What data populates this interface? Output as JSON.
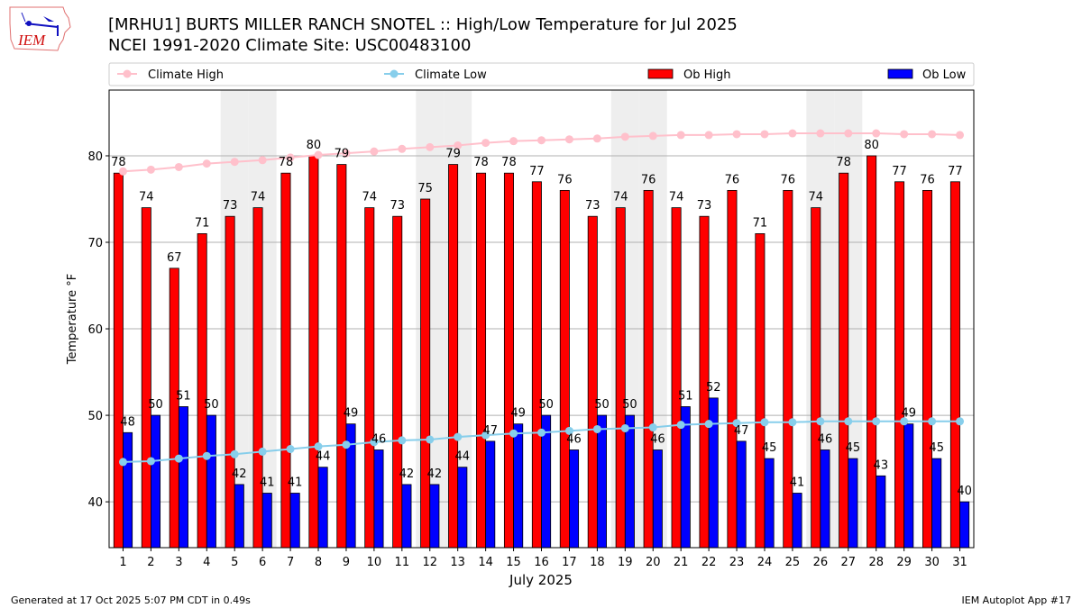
{
  "header": {
    "title_line1": "[MRHU1] BURTS MILLER RANCH SNOTEL :: High/Low Temperature for Jul 2025",
    "title_line2": "NCEI 1991-2020 Climate Site: USC00483100",
    "logo_text": "IEM"
  },
  "footer": {
    "generated": "Generated at 17 Oct 2025 5:07 PM CDT in 0.49s",
    "app": "IEM Autoplot App #17"
  },
  "colors": {
    "climate_high": "#ffc0cb",
    "climate_low": "#87ceeb",
    "ob_high": "#ff0000",
    "ob_low": "#0000ff",
    "weekend_shade": "#eeeeee"
  },
  "chart_data": {
    "type": "bar",
    "xlabel": "July 2025",
    "ylabel": "Temperature °F",
    "ylim": [
      34.7,
      87.6
    ],
    "xlim": [
      0.5,
      31.5
    ],
    "yticks": [
      40,
      50,
      60,
      70,
      80
    ],
    "grid": "horizontal",
    "legend_position": "top",
    "weekend_days": [
      5,
      6,
      12,
      13,
      19,
      20,
      26,
      27
    ],
    "categories": [
      1,
      2,
      3,
      4,
      5,
      6,
      7,
      8,
      9,
      10,
      11,
      12,
      13,
      14,
      15,
      16,
      17,
      18,
      19,
      20,
      21,
      22,
      23,
      24,
      25,
      26,
      27,
      28,
      29,
      30,
      31
    ],
    "series": [
      {
        "name": "Climate High",
        "kind": "line",
        "values": [
          78.2,
          78.4,
          78.7,
          79.1,
          79.3,
          79.5,
          79.8,
          80.1,
          80.3,
          80.5,
          80.8,
          81.0,
          81.2,
          81.5,
          81.7,
          81.8,
          81.9,
          82.0,
          82.2,
          82.3,
          82.4,
          82.4,
          82.5,
          82.5,
          82.6,
          82.6,
          82.6,
          82.6,
          82.5,
          82.5,
          82.4
        ]
      },
      {
        "name": "Climate Low",
        "kind": "line",
        "values": [
          44.6,
          44.7,
          45.0,
          45.3,
          45.5,
          45.8,
          46.1,
          46.4,
          46.6,
          46.9,
          47.1,
          47.2,
          47.5,
          47.7,
          47.9,
          48.0,
          48.2,
          48.4,
          48.5,
          48.6,
          48.9,
          49.0,
          49.1,
          49.2,
          49.2,
          49.3,
          49.3,
          49.3,
          49.3,
          49.3,
          49.3
        ]
      },
      {
        "name": "Ob High",
        "kind": "bar",
        "values": [
          78,
          74,
          67,
          71,
          73,
          74,
          78,
          80,
          79,
          74,
          73,
          75,
          79,
          78,
          78,
          77,
          76,
          73,
          74,
          76,
          74,
          73,
          76,
          71,
          76,
          74,
          78,
          80,
          77,
          76,
          77
        ]
      },
      {
        "name": "Ob Low",
        "kind": "bar",
        "values": [
          48,
          50,
          51,
          50,
          42,
          41,
          41,
          44,
          49,
          46,
          42,
          42,
          44,
          47,
          49,
          50,
          46,
          50,
          50,
          46,
          51,
          52,
          47,
          45,
          41,
          46,
          45,
          43,
          49,
          45,
          40
        ]
      }
    ]
  }
}
